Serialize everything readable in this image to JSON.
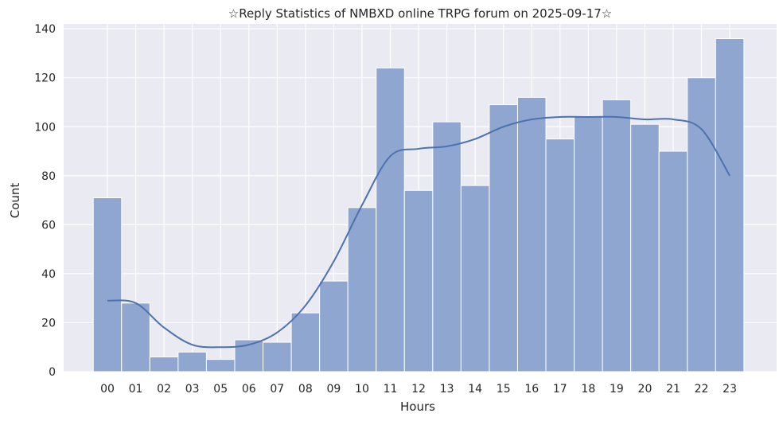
{
  "chart_data": {
    "type": "bar",
    "title": "☆Reply Statistics of NMBXD online TRPG forum on 2025-09-17☆",
    "xlabel": "Hours",
    "ylabel": "Count",
    "categories": [
      "00",
      "01",
      "02",
      "03",
      "05",
      "06",
      "07",
      "08",
      "09",
      "10",
      "11",
      "12",
      "13",
      "14",
      "15",
      "16",
      "17",
      "18",
      "19",
      "20",
      "21",
      "22",
      "23"
    ],
    "values": [
      71,
      28,
      6,
      8,
      5,
      13,
      12,
      24,
      37,
      67,
      124,
      74,
      102,
      76,
      109,
      112,
      95,
      104,
      111,
      101,
      90,
      120,
      136
    ],
    "yticks": [
      0,
      20,
      40,
      60,
      80,
      100,
      120,
      140
    ],
    "ylim": [
      0,
      142
    ],
    "kde": {
      "name": "density estimate",
      "values": [
        29,
        28,
        18,
        11,
        10,
        11,
        16,
        27,
        45,
        68,
        88,
        91,
        92,
        95,
        100,
        103,
        104,
        104,
        104,
        103,
        103,
        99,
        80
      ]
    },
    "grid": true,
    "background": "#eaeaf2",
    "bar_color": "#8fa6d0",
    "line_color": "#4c72b0"
  }
}
